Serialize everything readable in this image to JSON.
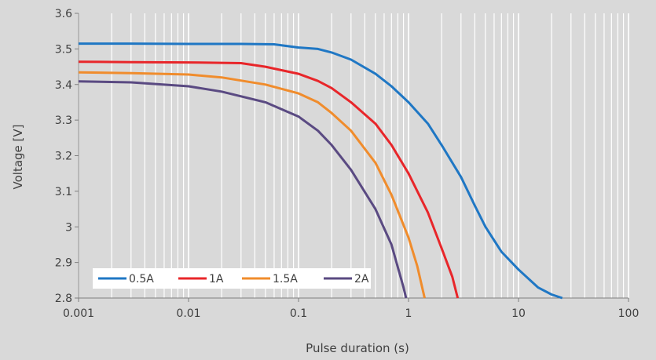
{
  "chart_data": {
    "type": "line",
    "title": "",
    "xlabel": "Pulse duration (s)",
    "ylabel": "Voltage [V]",
    "x_scale": "log",
    "xlim": [
      0.001,
      100
    ],
    "ylim": [
      2.8,
      3.6
    ],
    "x_ticks": [
      "0.001",
      "0.01",
      "0.1",
      "1",
      "10",
      "100"
    ],
    "y_ticks": [
      "2.8",
      "2.9",
      "3",
      "3.1",
      "3.2",
      "3.3",
      "3.4",
      "3.5",
      "3.6"
    ],
    "grid": "vertical minor and major, white",
    "legend": "bottom-left",
    "series": [
      {
        "name": "0.5A",
        "color": "#1f77c4",
        "points": [
          [
            0.001,
            3.515
          ],
          [
            0.003,
            3.515
          ],
          [
            0.01,
            3.514
          ],
          [
            0.03,
            3.514
          ],
          [
            0.06,
            3.513
          ],
          [
            0.1,
            3.504
          ],
          [
            0.15,
            3.5
          ],
          [
            0.2,
            3.49
          ],
          [
            0.3,
            3.47
          ],
          [
            0.5,
            3.43
          ],
          [
            0.7,
            3.395
          ],
          [
            1,
            3.35
          ],
          [
            1.5,
            3.29
          ],
          [
            2,
            3.23
          ],
          [
            3,
            3.14
          ],
          [
            4,
            3.06
          ],
          [
            5,
            3.0
          ],
          [
            7,
            2.93
          ],
          [
            10,
            2.88
          ],
          [
            15,
            2.83
          ],
          [
            20,
            2.81
          ],
          [
            25,
            2.8
          ]
        ]
      },
      {
        "name": "1A",
        "color": "#e8262a",
        "points": [
          [
            0.001,
            3.464
          ],
          [
            0.003,
            3.463
          ],
          [
            0.01,
            3.462
          ],
          [
            0.03,
            3.46
          ],
          [
            0.05,
            3.45
          ],
          [
            0.1,
            3.43
          ],
          [
            0.15,
            3.41
          ],
          [
            0.2,
            3.39
          ],
          [
            0.3,
            3.35
          ],
          [
            0.5,
            3.29
          ],
          [
            0.7,
            3.23
          ],
          [
            1,
            3.15
          ],
          [
            1.5,
            3.04
          ],
          [
            2,
            2.94
          ],
          [
            2.5,
            2.86
          ],
          [
            2.8,
            2.8
          ]
        ]
      },
      {
        "name": "1.5A",
        "color": "#f08c2c",
        "points": [
          [
            0.001,
            3.434
          ],
          [
            0.003,
            3.432
          ],
          [
            0.01,
            3.428
          ],
          [
            0.02,
            3.42
          ],
          [
            0.05,
            3.4
          ],
          [
            0.1,
            3.375
          ],
          [
            0.15,
            3.35
          ],
          [
            0.2,
            3.32
          ],
          [
            0.3,
            3.27
          ],
          [
            0.5,
            3.18
          ],
          [
            0.7,
            3.09
          ],
          [
            1,
            2.97
          ],
          [
            1.2,
            2.89
          ],
          [
            1.4,
            2.8
          ]
        ]
      },
      {
        "name": "2A",
        "color": "#5a4a82",
        "points": [
          [
            0.001,
            3.409
          ],
          [
            0.003,
            3.406
          ],
          [
            0.01,
            3.395
          ],
          [
            0.02,
            3.38
          ],
          [
            0.05,
            3.35
          ],
          [
            0.1,
            3.31
          ],
          [
            0.15,
            3.27
          ],
          [
            0.2,
            3.23
          ],
          [
            0.3,
            3.16
          ],
          [
            0.5,
            3.05
          ],
          [
            0.7,
            2.95
          ],
          [
            0.9,
            2.83
          ],
          [
            0.95,
            2.8
          ]
        ]
      }
    ]
  }
}
